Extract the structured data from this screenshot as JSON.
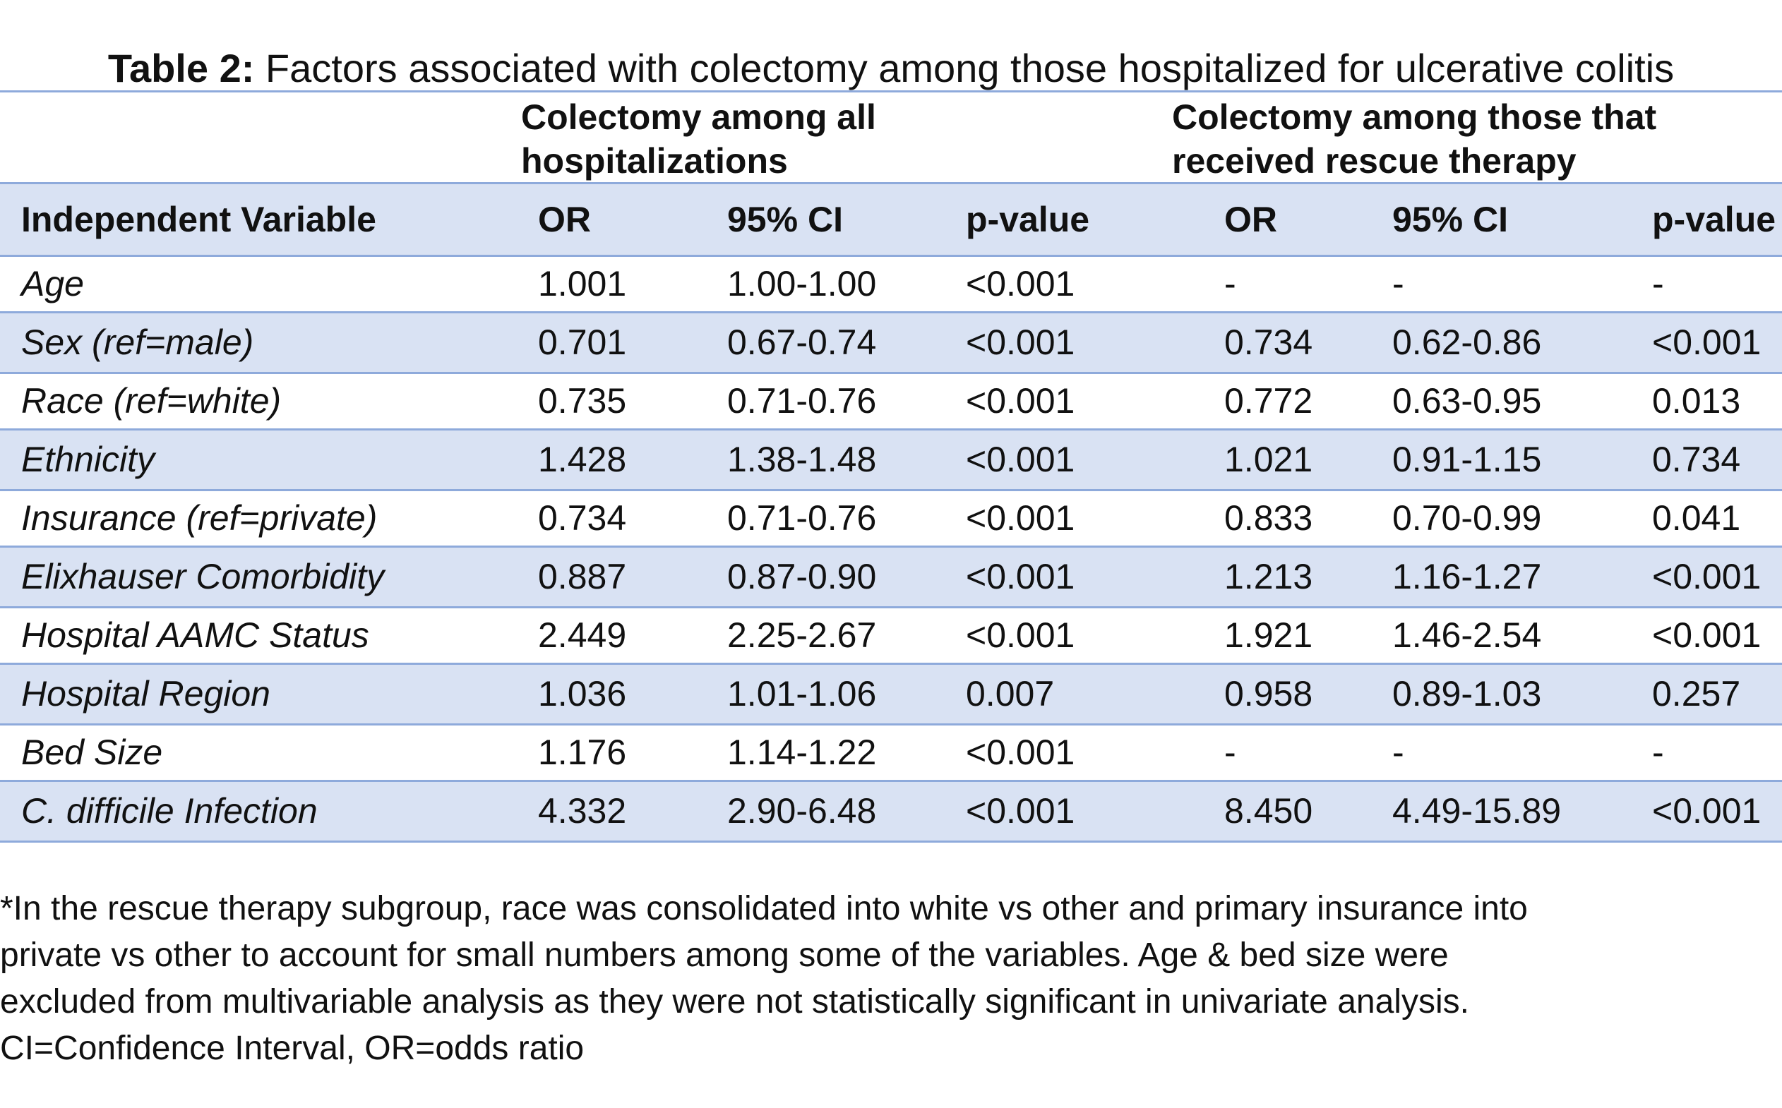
{
  "title": {
    "prefix": "Table 2:",
    "text": " Factors associated with colectomy among those hospitalized for ulcerative colitis"
  },
  "groups": [
    {
      "line1": "Colectomy among all",
      "line2": "hospitalizations"
    },
    {
      "line1": "Colectomy among those that",
      "line2": "received rescue therapy"
    }
  ],
  "columns": [
    "Independent Variable",
    "OR",
    "95% CI",
    "p-value",
    "OR",
    "95% CI",
    "p-value"
  ],
  "rows": [
    [
      "Age",
      "1.001",
      "1.00-1.00",
      "<0.001",
      "-",
      "-",
      "-"
    ],
    [
      "Sex (ref=male)",
      "0.701",
      "0.67-0.74",
      "<0.001",
      "0.734",
      "0.62-0.86",
      "<0.001"
    ],
    [
      "Race (ref=white)",
      "0.735",
      "0.71-0.76",
      "<0.001",
      "0.772",
      "0.63-0.95",
      "0.013"
    ],
    [
      "Ethnicity",
      "1.428",
      "1.38-1.48",
      "<0.001",
      "1.021",
      "0.91-1.15",
      "0.734"
    ],
    [
      "Insurance (ref=private)",
      "0.734",
      "0.71-0.76",
      "<0.001",
      "0.833",
      "0.70-0.99",
      "0.041"
    ],
    [
      "Elixhauser Comorbidity",
      "0.887",
      "0.87-0.90",
      "<0.001",
      "1.213",
      "1.16-1.27",
      "<0.001"
    ],
    [
      "Hospital AAMC Status",
      "2.449",
      "2.25-2.67",
      "<0.001",
      "1.921",
      "1.46-2.54",
      "<0.001"
    ],
    [
      "Hospital Region",
      "1.036",
      "1.01-1.06",
      "0.007",
      "0.958",
      "0.89-1.03",
      "0.257"
    ],
    [
      "Bed Size",
      "1.176",
      "1.14-1.22",
      "<0.001",
      "-",
      "-",
      "-"
    ],
    [
      "C. difficile Infection",
      "4.332",
      "2.90-6.48",
      "<0.001",
      "8.450",
      "4.49-15.89",
      "<0.001"
    ]
  ],
  "footnote": [
    "*In the rescue therapy subgroup, race was consolidated into white vs other and primary insurance into",
    "private vs other to account for small numbers among some of the variables. Age & bed size were",
    "excluded from multivariable analysis as they were not statistically significant in univariate analysis.",
    "CI=Confidence Interval, OR=odds ratio"
  ],
  "colors": {
    "rule": "#8eaadb",
    "band": "#d9e2f3"
  }
}
